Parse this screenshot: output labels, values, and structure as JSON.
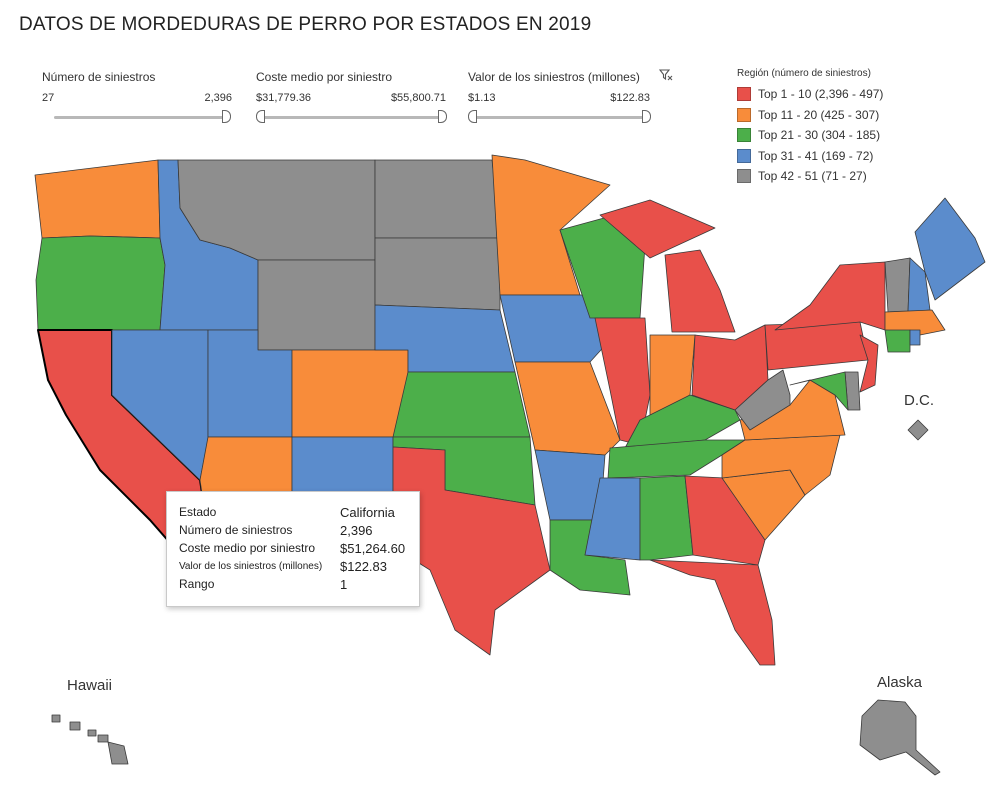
{
  "title": "DATOS DE MORDEDURAS DE PERRO POR ESTADOS EN 2019",
  "filters": [
    {
      "label": "Número de siniestros",
      "min": "27",
      "max": "2,396"
    },
    {
      "label": "Coste medio por siniestro",
      "min": "$31,779.36",
      "max": "$55,800.71"
    },
    {
      "label": "Valor de los siniestros (millones)",
      "min": "$1.13",
      "max": "$122.83"
    }
  ],
  "legend": {
    "title": "Región (número de siniestros)",
    "items": [
      {
        "label": "Top 1 - 10 (2,396 - 497)",
        "color": "#e8504a"
      },
      {
        "label": "Top 11 - 20 (425 - 307)",
        "color": "#f88c3a"
      },
      {
        "label": "Top 21 - 30 (304 - 185)",
        "color": "#4caf4a"
      },
      {
        "label": "Top 31 - 41 (169 - 72)",
        "color": "#5b8ccc"
      },
      {
        "label": "Top 42 - 51 (71 - 27)",
        "color": "#8e8e8e"
      }
    ]
  },
  "map_labels": {
    "dc": "D.C.",
    "hawaii": "Hawaii",
    "alaska": "Alaska"
  },
  "tooltip": {
    "rows": [
      {
        "key": "Estado",
        "value": "California"
      },
      {
        "key": "Número de siniestros",
        "value": "2,396"
      },
      {
        "key": "Coste medio por siniestro",
        "value": "$51,264.60"
      },
      {
        "key": "Valor de los siniestros (millones)",
        "value": "$122.83"
      },
      {
        "key": "Rango",
        "value": "1"
      }
    ]
  },
  "states": {
    "WA": "orange",
    "OR": "green",
    "CA": "red",
    "ID": "blue",
    "NV": "blue",
    "MT": "gray",
    "WY": "gray",
    "UT": "blue",
    "AZ": "orange",
    "CO": "orange",
    "NM": "blue",
    "ND": "gray",
    "SD": "gray",
    "NE": "blue",
    "KS": "green",
    "OK": "green",
    "TX": "red",
    "MN": "orange",
    "IA": "blue",
    "MO": "orange",
    "AR": "blue",
    "LA": "green",
    "WI": "green",
    "IL": "red",
    "MI": "red",
    "IN": "orange",
    "OH": "red",
    "KY": "green",
    "TN": "green",
    "MS": "blue",
    "AL": "green",
    "GA": "red",
    "FL": "red",
    "SC": "orange",
    "NC": "orange",
    "VA": "orange",
    "WV": "gray",
    "PA": "red",
    "NY": "red",
    "NJ": "red",
    "DE": "gray",
    "MD": "green",
    "VT": "gray",
    "NH": "blue",
    "ME": "blue",
    "MA": "orange",
    "CT": "green",
    "RI": "blue",
    "DC": "gray",
    "HI": "gray",
    "AK": "gray"
  }
}
